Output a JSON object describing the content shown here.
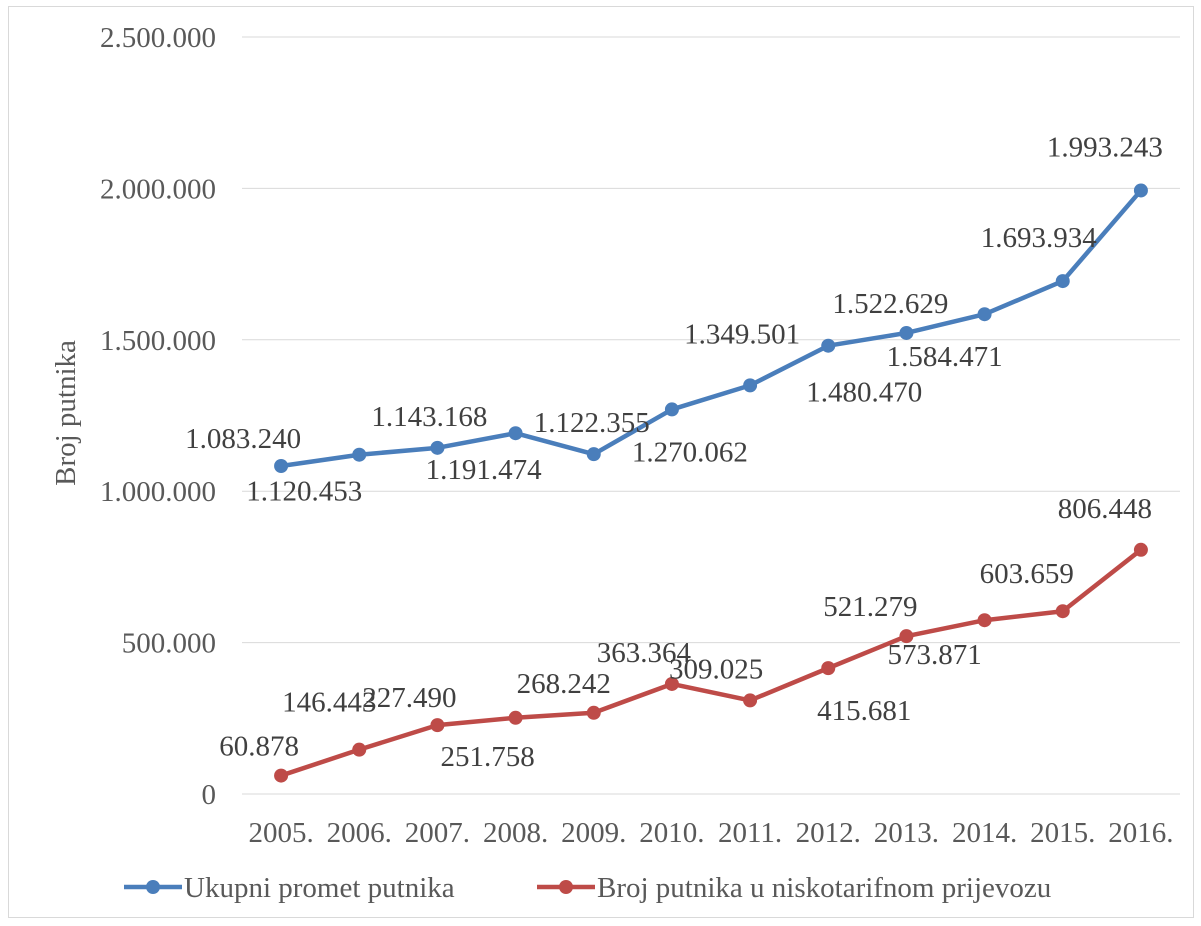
{
  "chart_data": {
    "type": "line",
    "title": "",
    "xlabel": "",
    "ylabel": "Broj putnika",
    "ylim": [
      0,
      2500000
    ],
    "yticks": [
      0,
      500000,
      1000000,
      1500000,
      2000000,
      2500000
    ],
    "ytick_labels": [
      "0",
      "500.000",
      "1.000.000",
      "1.500.000",
      "2.000.000",
      "2.500.000"
    ],
    "categories": [
      "2005.",
      "2006.",
      "2007.",
      "2008.",
      "2009.",
      "2010.",
      "2011.",
      "2012.",
      "2013.",
      "2014.",
      "2015.",
      "2016."
    ],
    "grid": "horizontal",
    "legend_position": "bottom",
    "series": [
      {
        "name": "Ukupni promet putnika",
        "color": "#4a7ebb",
        "values": [
          1083240,
          1120453,
          1143168,
          1191474,
          1122355,
          1270062,
          1349501,
          1480470,
          1522629,
          1584471,
          1693934,
          1993243
        ],
        "labels": [
          "1.083.240",
          "1.120.453",
          "1.143.168",
          "1.191.474",
          "1.122.355",
          "1.270.062",
          "1.349.501",
          "1.480.470",
          "1.522.629",
          "1.584.471",
          "1.693.934",
          "1.993.243"
        ]
      },
      {
        "name": "Broj putnika u niskotarifnom prijevozu",
        "color": "#be4b48",
        "values": [
          60878,
          146443,
          227490,
          251758,
          268242,
          363364,
          309025,
          415681,
          521279,
          573871,
          603659,
          806448
        ],
        "labels": [
          "60.878",
          "146.443",
          "227.490",
          "251.758",
          "268.242",
          "363.364",
          "309.025",
          "415.681",
          "521.279",
          "573.871",
          "603.659",
          "806.448"
        ]
      }
    ]
  }
}
